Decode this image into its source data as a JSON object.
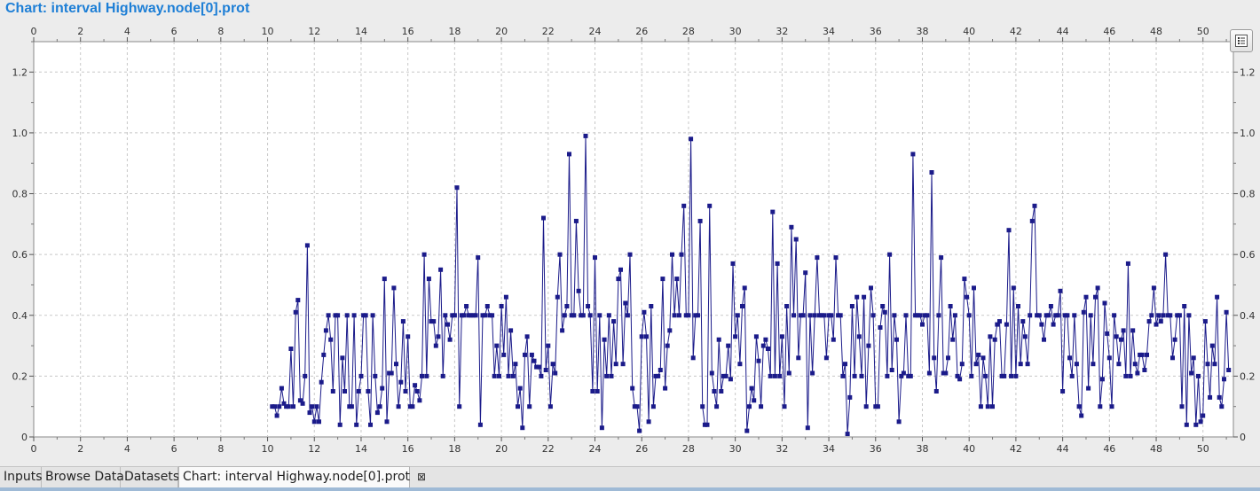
{
  "window": {
    "title": "Chart: interval Highway.node[0].prot"
  },
  "legend_button": {
    "icon": "list-icon"
  },
  "tabs": [
    {
      "label": "Inputs",
      "active": false
    },
    {
      "label": "Browse Data",
      "active": false
    },
    {
      "label": "Datasets",
      "active": false
    },
    {
      "label": "Chart: interval Highway.node[0].prot",
      "active": true,
      "close_icon": "close-icon",
      "close_glyph": "⊠"
    }
  ],
  "colors": {
    "title": "#1e7fd6",
    "series": "#1b1b8a",
    "grid": "#c8c8c8",
    "plot_background": "#ffffff"
  },
  "chart_data": {
    "type": "line",
    "title": "",
    "xlabel": "",
    "ylabel": "",
    "xlim": [
      0,
      51.3
    ],
    "ylim": [
      0,
      1.3
    ],
    "x_ticks": [
      0,
      2,
      4,
      6,
      8,
      10,
      12,
      14,
      16,
      18,
      20,
      22,
      24,
      26,
      28,
      30,
      32,
      34,
      36,
      38,
      40,
      42,
      44,
      46,
      48,
      50
    ],
    "y_ticks": [
      0,
      0.2,
      0.4,
      0.6,
      0.8,
      1.0,
      1.2
    ],
    "y_tick_labels": [
      "0",
      "0.2",
      "0.4",
      "0.6",
      "0.8",
      "1.0",
      "1.2"
    ],
    "grid": true,
    "axes_mirrored": "top and right",
    "markers": "square",
    "series": [
      {
        "x_start": 10.2,
        "x_step": 0.1,
        "values": [
          0.1,
          0.1,
          0.07,
          0.1,
          0.16,
          0.11,
          0.1,
          0.1,
          0.29,
          0.1,
          0.41,
          0.45,
          0.12,
          0.11,
          0.2,
          0.63,
          0.08,
          0.1,
          0.05,
          0.1,
          0.05,
          0.18,
          0.27,
          0.35,
          0.4,
          0.32,
          0.15,
          0.4,
          0.4,
          0.04,
          0.26,
          0.15,
          0.4,
          0.1,
          0.1,
          0.4,
          0.04,
          0.15,
          0.2,
          0.4,
          0.4,
          0.15,
          0.04,
          0.4,
          0.2,
          0.08,
          0.1,
          0.16,
          0.52,
          0.05,
          0.21,
          0.21,
          0.49,
          0.24,
          0.1,
          0.18,
          0.38,
          0.15,
          0.33,
          0.1,
          0.1,
          0.17,
          0.15,
          0.12,
          0.2,
          0.6,
          0.2,
          0.52,
          0.38,
          0.38,
          0.3,
          0.33,
          0.55,
          0.2,
          0.4,
          0.37,
          0.32,
          0.4,
          0.4,
          0.82,
          0.1,
          0.4,
          0.4,
          0.43,
          0.4,
          0.4,
          0.4,
          0.4,
          0.59,
          0.04,
          0.4,
          0.4,
          0.43,
          0.4,
          0.4,
          0.2,
          0.3,
          0.2,
          0.43,
          0.27,
          0.46,
          0.2,
          0.35,
          0.2,
          0.24,
          0.1,
          0.16,
          0.03,
          0.27,
          0.33,
          0.1,
          0.27,
          0.25,
          0.23,
          0.23,
          0.2,
          0.72,
          0.22,
          0.3,
          0.1,
          0.24,
          0.21,
          0.46,
          0.6,
          0.35,
          0.4,
          0.43,
          0.93,
          0.4,
          0.4,
          0.71,
          0.48,
          0.4,
          0.4,
          0.99,
          0.43,
          0.4,
          0.15,
          0.59,
          0.15,
          0.4,
          0.03,
          0.32,
          0.2,
          0.4,
          0.2,
          0.38,
          0.24,
          0.52,
          0.55,
          0.24,
          0.44,
          0.4,
          0.6,
          0.16,
          0.1,
          0.1,
          0.02,
          0.33,
          0.41,
          0.33,
          0.05,
          0.43,
          0.1,
          0.2,
          0.2,
          0.22,
          0.52,
          0.16,
          0.3,
          0.35,
          0.6,
          0.4,
          0.52,
          0.4,
          0.6,
          0.76,
          0.4,
          0.4,
          0.98,
          0.26,
          0.4,
          0.4,
          0.71,
          0.1,
          0.04,
          0.04,
          0.76,
          0.21,
          0.15,
          0.1,
          0.32,
          0.15,
          0.2,
          0.2,
          0.3,
          0.19,
          0.57,
          0.33,
          0.4,
          0.24,
          0.43,
          0.49,
          0.02,
          0.1,
          0.16,
          0.12,
          0.33,
          0.25,
          0.1,
          0.3,
          0.32,
          0.29,
          0.2,
          0.74,
          0.2,
          0.57,
          0.2,
          0.33,
          0.1,
          0.43,
          0.21,
          0.69,
          0.4,
          0.65,
          0.26,
          0.4,
          0.4,
          0.54,
          0.03,
          0.4,
          0.21,
          0.4,
          0.59,
          0.4,
          0.4,
          0.4,
          0.26,
          0.4,
          0.4,
          0.32,
          0.59,
          0.4,
          0.4,
          0.2,
          0.24,
          0.01,
          0.13,
          0.43,
          0.2,
          0.46,
          0.33,
          0.2,
          0.46,
          0.1,
          0.3,
          0.49,
          0.4,
          0.1,
          0.1,
          0.36,
          0.43,
          0.41,
          0.2,
          0.6,
          0.22,
          0.4,
          0.32,
          0.05,
          0.2,
          0.21,
          0.4,
          0.2,
          0.2,
          0.93,
          0.4,
          0.4,
          0.4,
          0.37,
          0.4,
          0.4,
          0.21,
          0.87,
          0.26,
          0.15,
          0.4,
          0.59,
          0.21,
          0.21,
          0.26,
          0.43,
          0.32,
          0.4,
          0.2,
          0.19,
          0.24,
          0.52,
          0.46,
          0.4,
          0.2,
          0.49,
          0.24,
          0.27,
          0.1,
          0.26,
          0.2,
          0.1,
          0.33,
          0.1,
          0.32,
          0.37,
          0.38,
          0.2,
          0.2,
          0.37,
          0.68,
          0.2,
          0.49,
          0.2,
          0.43,
          0.24,
          0.38,
          0.33,
          0.24,
          0.4,
          0.71,
          0.76,
          0.4,
          0.4,
          0.37,
          0.32,
          0.4,
          0.4,
          0.43,
          0.37,
          0.4,
          0.4,
          0.48,
          0.15,
          0.4,
          0.4,
          0.26,
          0.2,
          0.4,
          0.24,
          0.1,
          0.07,
          0.41,
          0.46,
          0.16,
          0.4,
          0.24,
          0.46,
          0.49,
          0.1,
          0.19,
          0.44,
          0.34,
          0.26,
          0.1,
          0.4,
          0.33,
          0.24,
          0.32,
          0.35,
          0.2,
          0.57,
          0.2,
          0.35,
          0.24,
          0.21,
          0.27,
          0.27,
          0.22,
          0.27,
          0.38,
          0.4,
          0.49,
          0.37,
          0.4,
          0.38,
          0.4,
          0.6,
          0.4,
          0.4,
          0.26,
          0.32,
          0.4,
          0.4,
          0.1,
          0.43,
          0.04,
          0.4,
          0.21,
          0.26,
          0.04,
          0.2,
          0.05,
          0.07,
          0.38,
          0.24,
          0.13,
          0.3,
          0.24,
          0.46,
          0.13,
          0.1,
          0.19,
          0.41,
          0.22
        ]
      }
    ]
  }
}
